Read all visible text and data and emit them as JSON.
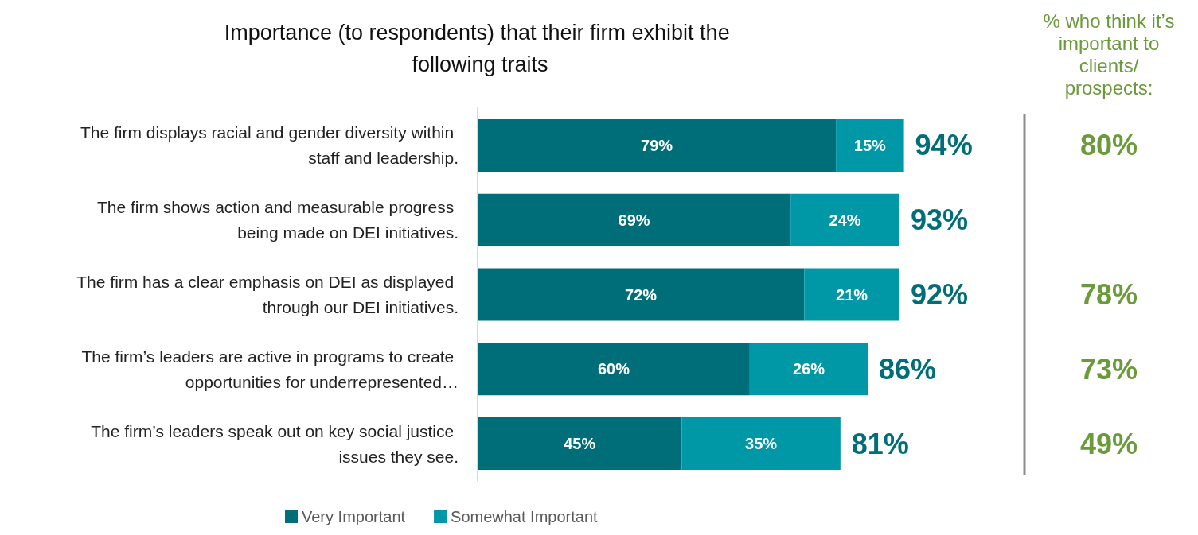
{
  "chart_data": [
    {
      "type": "bar",
      "orientation": "horizontal",
      "stacked": true,
      "title": "Importance (to respondents) that their firm exhibit the following traits",
      "categories": [
        "The firm displays racial and gender diversity within staff and leadership.",
        "The firm shows action and measurable progress being made on DEI initiatives.",
        "The firm has a clear emphasis on DEI as displayed through our DEI initiatives.",
        "The firm’s leaders are active in programs to create opportunities for underrepresented…",
        "The firm’s leaders speak out on key social justice issues they see."
      ],
      "series": [
        {
          "name": "Very Important",
          "color": "#006e78",
          "values": [
            79,
            69,
            72,
            60,
            45
          ],
          "value_labels": [
            "79%",
            "69%",
            "72%",
            "60%",
            "45%"
          ]
        },
        {
          "name": "Somewhat Important",
          "color": "#0097a7",
          "values": [
            15,
            24,
            21,
            26,
            35
          ],
          "value_labels": [
            "15%",
            "24%",
            "21%",
            "26%",
            "35%"
          ]
        }
      ],
      "totals": [
        "94%",
        "93%",
        "92%",
        "86%",
        "81%"
      ],
      "grid": false,
      "legend": "bottom"
    },
    {
      "type": "other",
      "title": "% who think it’s important to clients/prospects:",
      "categories": [
        null,
        null,
        null,
        null,
        null
      ],
      "value_labels": [
        "80%",
        null,
        "78%",
        "73%",
        "49%"
      ],
      "color": "#6a9a3a"
    }
  ]
}
